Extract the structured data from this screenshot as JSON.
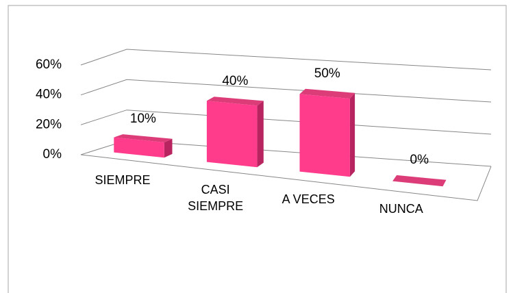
{
  "chart_data": {
    "type": "bar3d",
    "categories": [
      "SIEMPRE",
      "CASI SIEMPRE",
      "A VECES",
      "NUNCA"
    ],
    "values": [
      10,
      40,
      50,
      0
    ],
    "value_labels": [
      "10%",
      "40%",
      "50%",
      "0%"
    ],
    "color": "#ff3c8c",
    "ylim": [
      0,
      60
    ],
    "yticks": [
      {
        "value": 0,
        "label": "0%"
      },
      {
        "value": 20,
        "label": "20%"
      },
      {
        "value": 40,
        "label": "40%"
      },
      {
        "value": 60,
        "label": "60%"
      }
    ],
    "grid": true
  }
}
